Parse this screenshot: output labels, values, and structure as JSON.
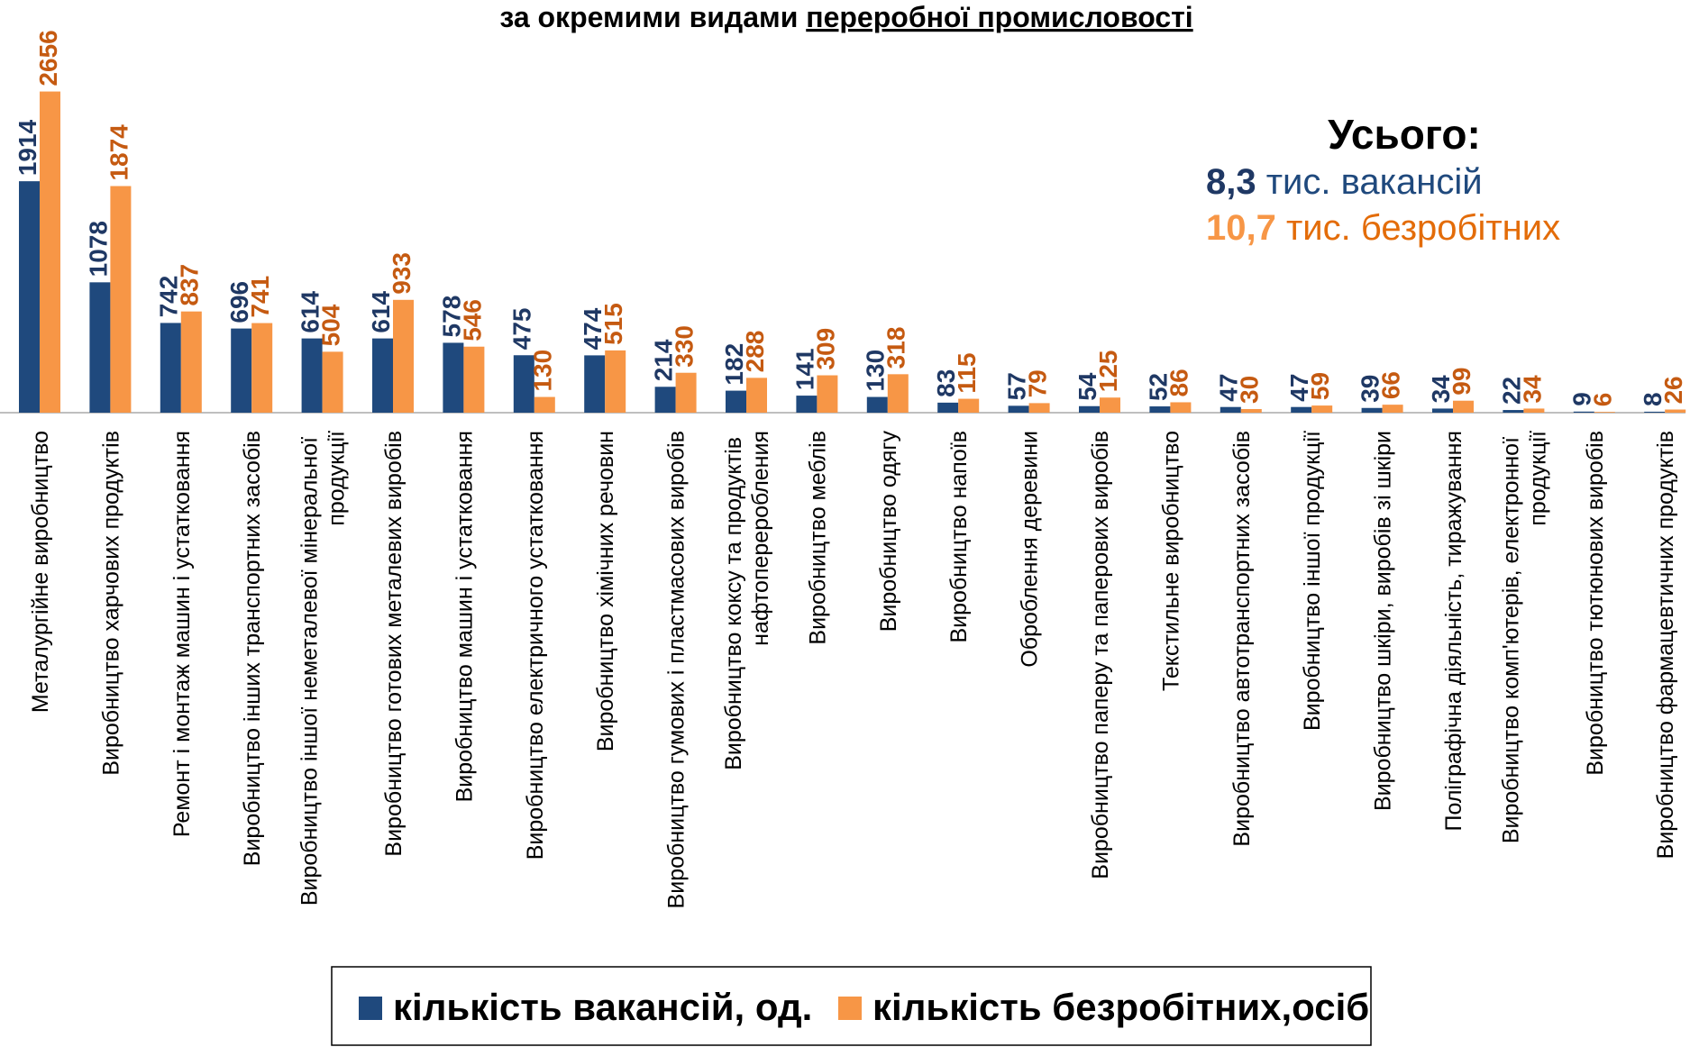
{
  "chart_data": {
    "type": "bar",
    "title": "за окремими видами",
    "title_underlined": "переробної промисловості",
    "annotation": {
      "heading": "Усього:",
      "vacancies_value": "8,3",
      "vacancies_text": "тис. вакансій",
      "unemployed_value": "10,7",
      "unemployed_text": "тис. безробітних"
    },
    "categories": [
      "Металургійне виробництво",
      "Виробництво харчових продуктів",
      "Ремонт і монтаж машин і устатковання",
      "Виробництво інших транспортних засобів",
      "Виробництво іншої неметалевої мінеральної продукції",
      "Виробництво готових металевих виробів",
      "Виробництво машин і устатковання",
      "Виробництво електричного устатковання",
      "Виробництво хімічних речовин",
      "Виробництво гумових і пластмасових виробів",
      "Виробництво коксу та продуктів нафтопереробления",
      "Виробництво меблів",
      "Виробництво одягу",
      "Виробництво напоїв",
      "Оброблення деревини",
      "Виробництво паперу та паперових виробів",
      "Текстильне виробництво",
      "Виробництво автотранспортних засобів",
      "Виробництво іншої продукції",
      "Виробництво шкіри, виробів зі шкіри",
      "Поліграфічна діяльність, тиражування",
      "Виробництво комп'ютерів, електронної продукції",
      "Виробництво тютюнових виробів",
      "Виробництво фармацевтичних продуктів"
    ],
    "series": [
      {
        "name": "кількість вакансій, од.",
        "color": "#1f497d",
        "label_color": "#1f3864",
        "values": [
          1914,
          1078,
          742,
          696,
          614,
          614,
          578,
          475,
          474,
          214,
          182,
          141,
          130,
          83,
          57,
          54,
          52,
          47,
          47,
          39,
          34,
          22,
          9,
          8
        ]
      },
      {
        "name": "кількість безробітних,осіб",
        "color": "#f79646",
        "label_color": "#c55a11",
        "values": [
          2656,
          1874,
          837,
          741,
          504,
          933,
          546,
          130,
          515,
          330,
          288,
          309,
          318,
          115,
          79,
          125,
          86,
          30,
          59,
          66,
          99,
          34,
          6,
          26
        ]
      }
    ],
    "legend": "bottom"
  }
}
